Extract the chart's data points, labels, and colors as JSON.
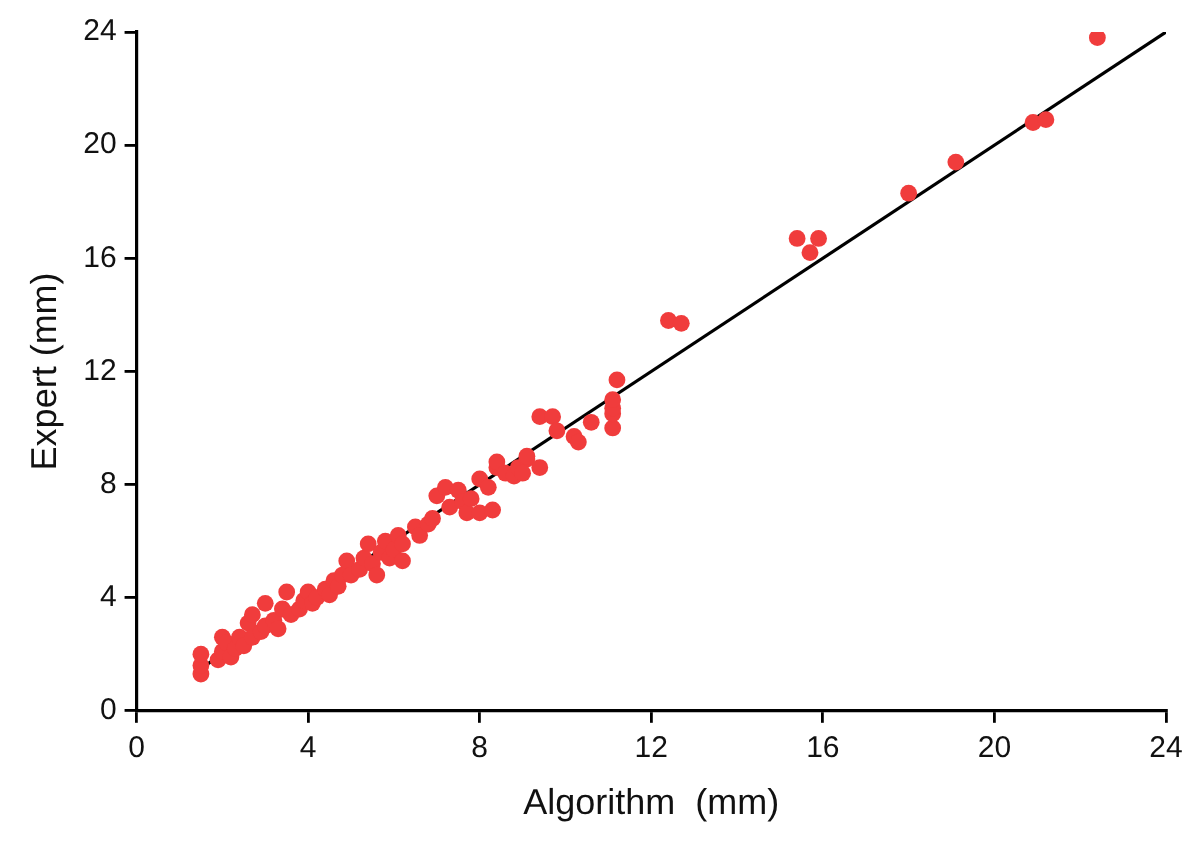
{
  "chart_data": {
    "type": "scatter",
    "xlabel": "Algorithm  (mm)",
    "ylabel": "Expert (mm)",
    "xlim": [
      0,
      24
    ],
    "ylim": [
      0,
      24
    ],
    "xticks": [
      0,
      4,
      8,
      12,
      16,
      20,
      24
    ],
    "yticks": [
      0,
      4,
      8,
      12,
      16,
      20,
      24
    ],
    "grid": false,
    "legend": false,
    "marker": "circle",
    "series": [
      {
        "color": "#f03c3c",
        "x": [
          1.5,
          1.5,
          1.5,
          1.9,
          2.0,
          2.0,
          2.1,
          2.2,
          2.3,
          2.4,
          2.5,
          2.6,
          2.7,
          2.7,
          2.9,
          3.0,
          3.0,
          3.2,
          3.3,
          3.4,
          3.5,
          3.6,
          3.8,
          3.9,
          4.0,
          4.1,
          4.2,
          4.4,
          4.5,
          4.6,
          4.7,
          4.8,
          4.9,
          5.0,
          5.2,
          5.3,
          5.4,
          5.5,
          5.6,
          5.7,
          5.8,
          5.9,
          6.0,
          6.1,
          6.2,
          6.2,
          6.5,
          6.6,
          6.8,
          6.9,
          7.0,
          7.2,
          7.3,
          7.5,
          7.6,
          7.7,
          7.8,
          8.0,
          8.0,
          8.2,
          8.3,
          8.4,
          8.4,
          8.6,
          8.8,
          8.9,
          9.1,
          9.0,
          9.4,
          9.1,
          9.4,
          9.7,
          9.8,
          10.2,
          10.3,
          10.6,
          11.1,
          11.1,
          11.1,
          11.1,
          11.2,
          12.4,
          12.7,
          15.4,
          15.7,
          15.9,
          18.0,
          19.1,
          20.9,
          21.2,
          22.4
        ],
        "values": [
          1.3,
          1.6,
          2.0,
          1.8,
          2.1,
          2.6,
          2.4,
          1.9,
          2.2,
          2.6,
          2.3,
          3.1,
          3.4,
          2.6,
          2.8,
          3.8,
          3.0,
          3.2,
          2.9,
          3.6,
          4.2,
          3.4,
          3.6,
          3.9,
          4.2,
          3.8,
          4.0,
          4.3,
          4.1,
          4.6,
          4.4,
          4.8,
          5.3,
          4.8,
          5.0,
          5.4,
          5.9,
          5.2,
          4.8,
          5.6,
          6.0,
          5.4,
          5.7,
          6.2,
          5.9,
          5.3,
          6.5,
          6.2,
          6.6,
          6.8,
          7.6,
          7.9,
          7.2,
          7.8,
          7.4,
          7.0,
          7.5,
          7.0,
          8.2,
          7.9,
          7.1,
          8.6,
          8.8,
          8.4,
          8.3,
          8.6,
          8.9,
          8.4,
          8.6,
          9.0,
          10.4,
          10.4,
          9.9,
          9.7,
          9.5,
          10.2,
          10.0,
          10.5,
          10.7,
          11.0,
          11.7,
          13.8,
          13.7,
          16.7,
          16.2,
          16.7,
          18.3,
          19.4,
          20.8,
          20.9,
          23.8
        ]
      },
      {
        "type": "line",
        "color": "#000000",
        "x": [
          1.5,
          24
        ],
        "values": [
          1.5,
          24
        ],
        "marker": "none"
      }
    ]
  }
}
